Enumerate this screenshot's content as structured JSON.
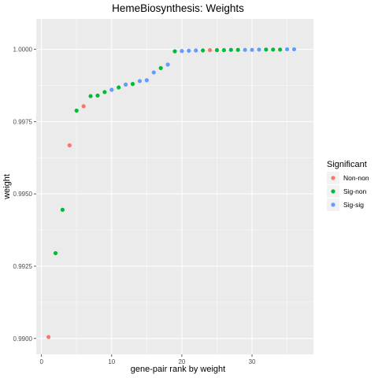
{
  "chart_data": {
    "type": "scatter",
    "title": "HemeBiosynthesis: Weights",
    "xlabel": "gene-pair rank by weight",
    "ylabel": "weight",
    "xlim": [
      -0.75,
      38.75
    ],
    "ylim": [
      0.98945,
      1.00105
    ],
    "x_ticks": [
      0,
      10,
      20,
      30
    ],
    "y_ticks": [
      0.99,
      0.9925,
      0.995,
      0.9975,
      1.0
    ],
    "y_tick_labels": [
      "0.9900",
      "0.9925",
      "0.9950",
      "0.9975",
      "1.0000"
    ],
    "grid": true,
    "legend": {
      "title": "Significant",
      "position": "right",
      "entries": [
        {
          "label": "Non-non",
          "color": "#F8766D"
        },
        {
          "label": "Sig-non",
          "color": "#00BA38"
        },
        {
          "label": "Sig-sig",
          "color": "#619CFF"
        }
      ]
    },
    "points": [
      {
        "x": 1,
        "y": 0.99005,
        "group": "Non-non"
      },
      {
        "x": 2,
        "y": 0.99295,
        "group": "Sig-non"
      },
      {
        "x": 3,
        "y": 0.99445,
        "group": "Sig-non"
      },
      {
        "x": 4,
        "y": 0.99668,
        "group": "Non-non"
      },
      {
        "x": 5,
        "y": 0.99788,
        "group": "Sig-non"
      },
      {
        "x": 6,
        "y": 0.99803,
        "group": "Non-non"
      },
      {
        "x": 7,
        "y": 0.99838,
        "group": "Sig-non"
      },
      {
        "x": 8,
        "y": 0.9984,
        "group": "Sig-non"
      },
      {
        "x": 9,
        "y": 0.99852,
        "group": "Sig-non"
      },
      {
        "x": 10,
        "y": 0.9986,
        "group": "Sig-sig"
      },
      {
        "x": 11,
        "y": 0.99868,
        "group": "Sig-non"
      },
      {
        "x": 12,
        "y": 0.99878,
        "group": "Sig-sig"
      },
      {
        "x": 13,
        "y": 0.9988,
        "group": "Sig-non"
      },
      {
        "x": 14,
        "y": 0.9989,
        "group": "Sig-sig"
      },
      {
        "x": 15,
        "y": 0.99893,
        "group": "Sig-sig"
      },
      {
        "x": 16,
        "y": 0.9992,
        "group": "Sig-sig"
      },
      {
        "x": 17,
        "y": 0.99935,
        "group": "Sig-non"
      },
      {
        "x": 18,
        "y": 0.99947,
        "group": "Sig-sig"
      },
      {
        "x": 19,
        "y": 0.99993,
        "group": "Sig-non"
      },
      {
        "x": 20,
        "y": 0.99994,
        "group": "Sig-sig"
      },
      {
        "x": 21,
        "y": 0.99995,
        "group": "Sig-sig"
      },
      {
        "x": 22,
        "y": 0.99996,
        "group": "Sig-sig"
      },
      {
        "x": 23,
        "y": 0.99996,
        "group": "Sig-non"
      },
      {
        "x": 24,
        "y": 0.99997,
        "group": "Non-non"
      },
      {
        "x": 25,
        "y": 0.99997,
        "group": "Sig-non"
      },
      {
        "x": 26,
        "y": 0.99997,
        "group": "Sig-non"
      },
      {
        "x": 27,
        "y": 0.99998,
        "group": "Sig-non"
      },
      {
        "x": 28,
        "y": 0.99998,
        "group": "Sig-non"
      },
      {
        "x": 29,
        "y": 0.99998,
        "group": "Sig-sig"
      },
      {
        "x": 30,
        "y": 0.99998,
        "group": "Sig-sig"
      },
      {
        "x": 31,
        "y": 0.99999,
        "group": "Sig-sig"
      },
      {
        "x": 32,
        "y": 0.99999,
        "group": "Sig-non"
      },
      {
        "x": 33,
        "y": 0.99999,
        "group": "Sig-non"
      },
      {
        "x": 34,
        "y": 0.99999,
        "group": "Sig-non"
      },
      {
        "x": 35,
        "y": 1.0,
        "group": "Sig-sig"
      },
      {
        "x": 36,
        "y": 1.0,
        "group": "Sig-sig"
      }
    ]
  }
}
